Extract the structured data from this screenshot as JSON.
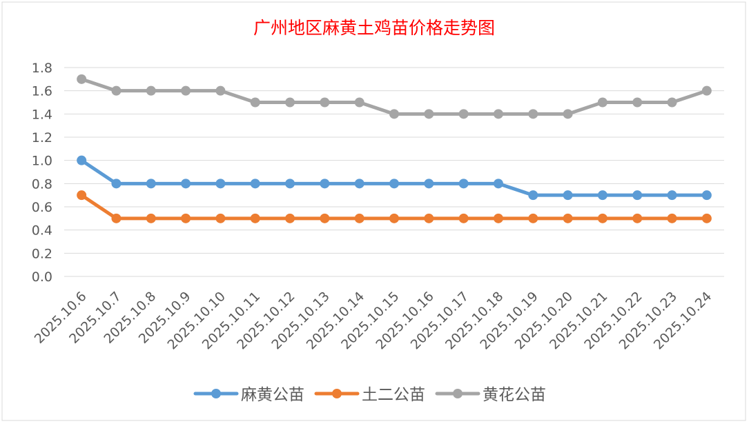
{
  "chart_data": {
    "type": "line",
    "title": "广州地区麻黄土鸡苗价格走势图",
    "xlabel": "",
    "ylabel": "",
    "ylim": [
      0,
      1.8
    ],
    "yticks": [
      "0.0",
      "0.2",
      "0.4",
      "0.6",
      "0.8",
      "1.0",
      "1.2",
      "1.4",
      "1.6",
      "1.8"
    ],
    "grid": true,
    "legend": "bottom",
    "categories": [
      "2025.10.6",
      "2025.10.7",
      "2025.10.8",
      "2025.10.9",
      "2025.10.10",
      "2025.10.11",
      "2025.10.12",
      "2025.10.13",
      "2025.10.14",
      "2025.10.15",
      "2025.10.16",
      "2025.10.17",
      "2025.10.18",
      "2025.10.19",
      "2025.10.20",
      "2025.10.21",
      "2025.10.22",
      "2025.10.23",
      "2025.10.24"
    ],
    "series": [
      {
        "name": "麻黄公苗",
        "color": "#5b9bd5",
        "values": [
          1.0,
          0.8,
          0.8,
          0.8,
          0.8,
          0.8,
          0.8,
          0.8,
          0.8,
          0.8,
          0.8,
          0.8,
          0.8,
          0.7,
          0.7,
          0.7,
          0.7,
          0.7,
          0.7
        ]
      },
      {
        "name": "土二公苗",
        "color": "#ed7d31",
        "values": [
          0.7,
          0.5,
          0.5,
          0.5,
          0.5,
          0.5,
          0.5,
          0.5,
          0.5,
          0.5,
          0.5,
          0.5,
          0.5,
          0.5,
          0.5,
          0.5,
          0.5,
          0.5,
          0.5
        ]
      },
      {
        "name": "黄花公苗",
        "color": "#a5a5a5",
        "values": [
          1.7,
          1.6,
          1.6,
          1.6,
          1.6,
          1.5,
          1.5,
          1.5,
          1.5,
          1.4,
          1.4,
          1.4,
          1.4,
          1.4,
          1.4,
          1.5,
          1.5,
          1.5,
          1.6
        ]
      }
    ],
    "title_color": "#ff0000"
  }
}
